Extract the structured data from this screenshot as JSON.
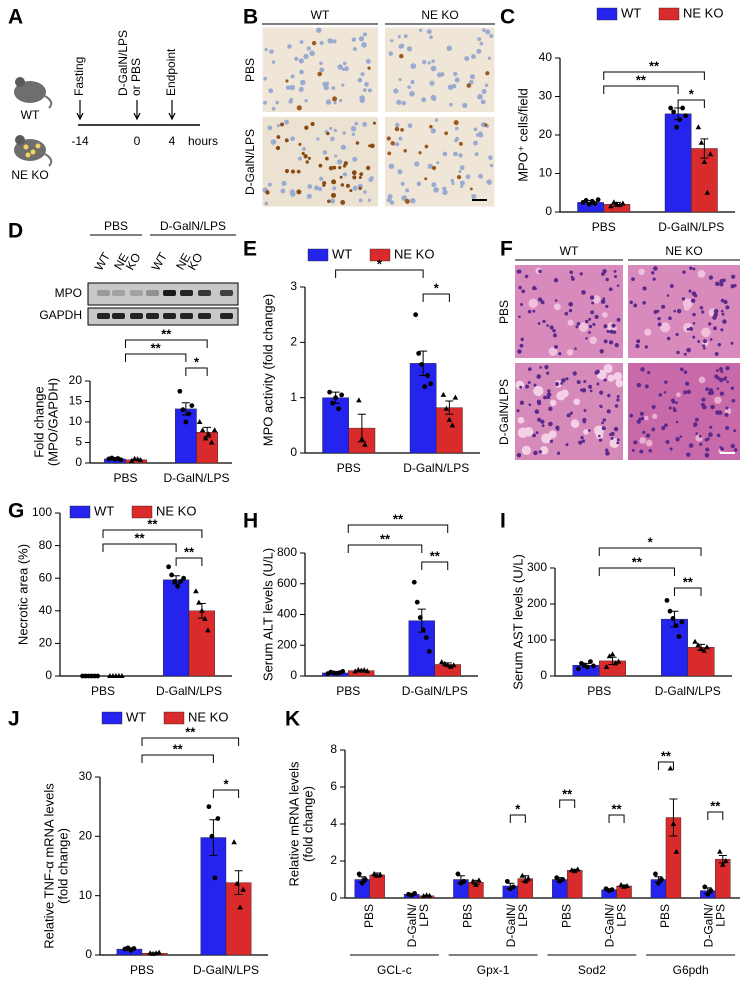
{
  "panels": {
    "A": {
      "label": "A",
      "groups": [
        "WT",
        "NE KO"
      ],
      "events": [
        [
          "Fasting"
        ],
        [
          "D-GalN/LPS",
          "or PBS"
        ],
        [
          "Endpoint"
        ]
      ],
      "times": [
        "-14",
        "0",
        "4"
      ],
      "unit": "hours"
    },
    "B": {
      "label": "B",
      "columns": [
        "WT",
        "NE KO"
      ],
      "rows": [
        "PBS",
        "D-GalN/LPS"
      ]
    },
    "D": {
      "label": "D",
      "groups": [
        "PBS",
        "D-GalN/LPS"
      ],
      "lanes": [
        [
          "WT"
        ],
        [
          "NE",
          "KO"
        ],
        [
          "WT"
        ],
        [
          "NE",
          "KO"
        ]
      ],
      "rows": [
        "MPO",
        "GAPDH"
      ]
    },
    "F": {
      "label": "F",
      "columns": [
        "WT",
        "NE KO"
      ],
      "rows": [
        "PBS",
        "D-GalN/LPS"
      ]
    }
  },
  "chart_data": [
    {
      "type": "bar",
      "label": "C",
      "ylabel": [
        "MPO⁺ cells/field"
      ],
      "categories": [
        "PBS",
        "D-GalN/LPS"
      ],
      "ylim": [
        0,
        40
      ],
      "yticks": [
        0,
        10,
        20,
        30,
        40
      ],
      "series": [
        {
          "name": "WT",
          "color": "#2424ee",
          "values": [
            2.5,
            25.5
          ],
          "errors": [
            0.5,
            1.5
          ],
          "points": [
            [
              2.5,
              3,
              2,
              2.8,
              2.2,
              3.2
            ],
            [
              27,
              26,
              22,
              24,
              27,
              25
            ]
          ]
        },
        {
          "name": "NE KO",
          "color": "#d92b2b",
          "values": [
            2,
            16.5
          ],
          "errors": [
            0.5,
            2.5
          ],
          "points": [
            [
              1.5,
              2.5,
              2,
              1.8,
              2.2
            ],
            [
              22,
              18,
              13,
              5,
              15
            ]
          ]
        }
      ],
      "annotations": [
        "**",
        "**",
        "*"
      ]
    },
    {
      "type": "bar",
      "ylabel": [
        "Fold change",
        "(MPO/GAPDH)"
      ],
      "categories": [
        "PBS",
        "D-GalN/LPS"
      ],
      "ylim": [
        0,
        20
      ],
      "yticks": [
        0,
        5,
        10,
        15,
        20
      ],
      "series": [
        {
          "color": "#2424ee",
          "values": [
            1,
            13.2
          ],
          "errors": [
            0.1,
            1.5
          ],
          "points": [
            [
              1,
              1.2,
              0.9,
              1.1,
              0.8
            ],
            [
              17.5,
              13,
              10,
              12,
              14
            ]
          ]
        },
        {
          "color": "#d92b2b",
          "values": [
            0.8,
            7.5
          ],
          "errors": [
            0.15,
            1.2
          ],
          "points": [
            [
              0.5,
              1,
              0.9,
              0.7
            ],
            [
              10,
              8,
              6,
              7,
              5,
              8
            ]
          ]
        }
      ],
      "annotations": [
        "**",
        "**",
        "*"
      ]
    },
    {
      "type": "bar",
      "label": "E",
      "ylabel": [
        "MPO activity (fold change)"
      ],
      "categories": [
        "PBS",
        "D-GalN/LPS"
      ],
      "ylim": [
        0,
        3
      ],
      "yticks": [
        0,
        1,
        2,
        3
      ],
      "series": [
        {
          "name": "WT",
          "color": "#2424ee",
          "values": [
            1.0,
            1.62
          ],
          "errors": [
            0.1,
            0.22
          ],
          "points": [
            [
              1.1,
              0.9,
              1.0,
              0.8,
              1.05
            ],
            [
              2.5,
              1.8,
              1.6,
              1.2,
              1.4,
              1.25
            ]
          ]
        },
        {
          "name": "NE KO",
          "color": "#d92b2b",
          "values": [
            0.45,
            0.82
          ],
          "errors": [
            0.25,
            0.12
          ],
          "points": [
            [
              0.95,
              0.25,
              0.15
            ],
            [
              1.05,
              0.8,
              0.6,
              0.5,
              1.0
            ]
          ]
        }
      ],
      "annotations": [
        "*",
        "*"
      ]
    },
    {
      "type": "bar",
      "label": "G",
      "ylabel": [
        "Necrotic area (%)"
      ],
      "categories": [
        "PBS",
        "D-GalN/LPS"
      ],
      "ylim": [
        0,
        100
      ],
      "yticks": [
        0,
        20,
        40,
        60,
        80,
        100
      ],
      "series": [
        {
          "name": "WT",
          "color": "#2424ee",
          "values": [
            0,
            59
          ],
          "errors": [
            0,
            2.5
          ],
          "points": [
            [
              0,
              0,
              0,
              0,
              0,
              0
            ],
            [
              67,
              62,
              58,
              55,
              58,
              60
            ]
          ]
        },
        {
          "name": "NE KO",
          "color": "#d92b2b",
          "values": [
            0,
            40
          ],
          "errors": [
            0,
            4.5
          ],
          "points": [
            [
              0,
              0,
              0,
              0,
              0
            ],
            [
              52,
              45,
              40,
              35,
              28
            ]
          ]
        }
      ],
      "annotations": [
        "**",
        "**",
        "**"
      ]
    },
    {
      "type": "bar",
      "label": "H",
      "ylabel": [
        "Serum ALT levels (U/L)"
      ],
      "categories": [
        "PBS",
        "D-GalN/LPS"
      ],
      "ylim": [
        0,
        800
      ],
      "yticks": [
        0,
        200,
        400,
        600,
        800
      ],
      "series": [
        {
          "color": "#2424ee",
          "values": [
            20,
            360
          ],
          "errors": [
            4,
            75
          ],
          "points": [
            [
              15,
              25,
              20,
              18,
              22,
              30
            ],
            [
              610,
              480,
              380,
              300,
              250,
              160
            ]
          ]
        },
        {
          "color": "#d92b2b",
          "values": [
            35,
            75
          ],
          "errors": [
            5,
            10
          ],
          "points": [
            [
              30,
              40,
              35,
              38,
              32
            ],
            [
              90,
              80,
              70,
              60,
              70
            ]
          ]
        }
      ],
      "annotations": [
        "**",
        "**",
        "**"
      ]
    },
    {
      "type": "bar",
      "label": "I",
      "ylabel": [
        "Serum AST levels (U/L)"
      ],
      "categories": [
        "PBS",
        "D-GalN/LPS"
      ],
      "ylim": [
        0,
        300
      ],
      "yticks": [
        0,
        100,
        200,
        300
      ],
      "series": [
        {
          "color": "#2424ee",
          "values": [
            30,
            158
          ],
          "errors": [
            5,
            22
          ],
          "points": [
            [
              20,
              35,
              30,
              25,
              40,
              28
            ],
            [
              210,
              180,
              160,
              140,
              110,
              150
            ]
          ]
        },
        {
          "color": "#d92b2b",
          "values": [
            42,
            80
          ],
          "errors": [
            10,
            8
          ],
          "points": [
            [
              25,
              55,
              60,
              35,
              40
            ],
            [
              95,
              85,
              75,
              70,
              80
            ]
          ]
        }
      ],
      "annotations": [
        "*",
        "**",
        "**"
      ]
    },
    {
      "type": "bar",
      "label": "J",
      "ylabel": [
        "Relative TNF-α mRNA levels",
        "(fold change)"
      ],
      "categories": [
        "PBS",
        "D-GalN/LPS"
      ],
      "ylim": [
        0,
        30
      ],
      "yticks": [
        0,
        10,
        20,
        30
      ],
      "series": [
        {
          "name": "WT",
          "color": "#2424ee",
          "values": [
            1,
            19.8
          ],
          "errors": [
            0.2,
            3
          ],
          "points": [
            [
              1,
              1.2,
              0.8,
              1.1
            ],
            [
              25,
              20,
              13,
              23
            ]
          ]
        },
        {
          "name": "NE KO",
          "color": "#d92b2b",
          "values": [
            0.3,
            12.2
          ],
          "errors": [
            0.05,
            2
          ],
          "points": [
            [
              0.3,
              0.2,
              0.3,
              0.4
            ],
            [
              19,
              12,
              8,
              11
            ]
          ]
        }
      ],
      "annotations": [
        "**",
        "**",
        "*"
      ]
    },
    {
      "type": "bar",
      "label": "K",
      "ylabel": [
        "Relative mRNA levels",
        "(fold change)"
      ],
      "categories": [
        [
          "PBS"
        ],
        [
          "D-GalN/",
          "LPS"
        ],
        [
          "PBS"
        ],
        [
          "D-GalN/",
          "LPS"
        ],
        [
          "PBS"
        ],
        [
          "D-GalN/",
          "LPS"
        ],
        [
          "PBS"
        ],
        [
          "D-GalN/",
          "LPS"
        ]
      ],
      "groups": [
        "GCL-c",
        "Gpx-1",
        "Sod2",
        "G6pdh"
      ],
      "ylim": [
        0,
        8
      ],
      "yticks": [
        0,
        2,
        4,
        6,
        8
      ],
      "series": [
        {
          "color": "#2424ee",
          "values": [
            1.0,
            0.2,
            1.0,
            0.65,
            1.0,
            0.45,
            1.0,
            0.4
          ],
          "errors": [
            0.15,
            0.03,
            0.2,
            0.15,
            0.1,
            0.05,
            0.15,
            0.15
          ],
          "points": [
            [
              1.3,
              0.8,
              1.0
            ],
            [
              0.2,
              0.15,
              0.25
            ],
            [
              1.3,
              0.8,
              0.9
            ],
            [
              0.9,
              0.5,
              0.6
            ],
            [
              1.1,
              0.9,
              1.0
            ],
            [
              0.5,
              0.4,
              0.45
            ],
            [
              1.3,
              0.8,
              1.0
            ],
            [
              0.6,
              0.2,
              0.4
            ]
          ]
        },
        {
          "color": "#d92b2b",
          "values": [
            1.25,
            0.12,
            0.85,
            1.05,
            1.5,
            0.65,
            4.35,
            2.1
          ],
          "errors": [
            0.1,
            0.02,
            0.1,
            0.15,
            0.05,
            0.05,
            1.0,
            0.2
          ],
          "points": [
            [
              1.3,
              1.2,
              1.25
            ],
            [
              0.1,
              0.15,
              0.12
            ],
            [
              0.9,
              0.7,
              0.95
            ],
            [
              1.2,
              0.9,
              1.05
            ],
            [
              1.5,
              1.45,
              1.55
            ],
            [
              0.7,
              0.6,
              0.65
            ],
            [
              7,
              4,
              2.5
            ],
            [
              2.5,
              1.8,
              2.0
            ]
          ]
        }
      ],
      "annotations": [
        "*",
        "**",
        "**",
        "**",
        "**"
      ]
    }
  ]
}
